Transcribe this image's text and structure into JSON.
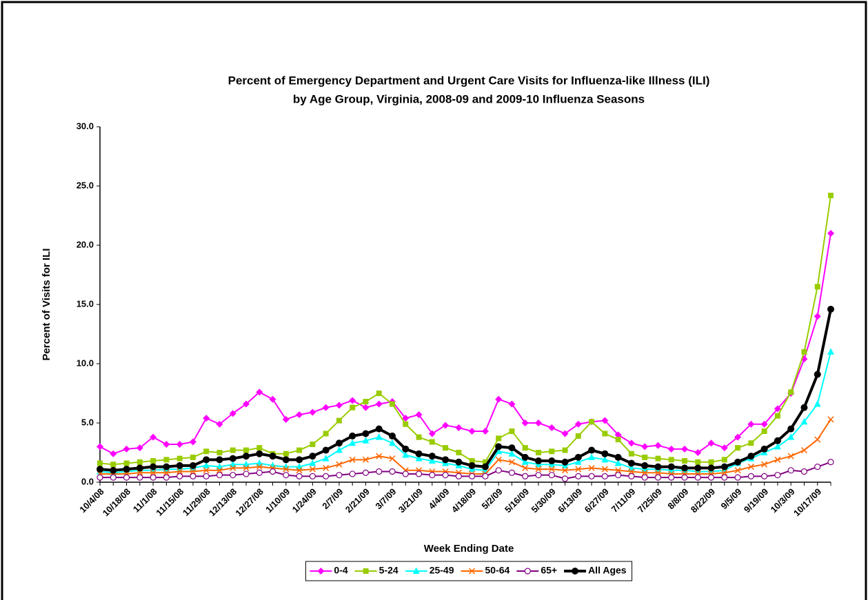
{
  "chart_data": {
    "type": "line",
    "title": [
      "Percent of Emergency Department and Urgent Care Visits for Influenza-like Illness (ILI)",
      "by Age Group, Virginia, 2008-09 and 2009-10 Influenza Seasons"
    ],
    "x_label": "Week Ending Date",
    "y_label": "Percent of Visits for ILI",
    "categories": [
      "10/4/08",
      null,
      "10/18/08",
      null,
      "11/1/08",
      null,
      "11/15/08",
      null,
      "11/29/08",
      null,
      "12/13/08",
      null,
      "12/27/08",
      null,
      "1/10/09",
      null,
      "1/24/09",
      null,
      "2/7/09",
      null,
      "2/21/09",
      null,
      "3/7/09",
      null,
      "3/21/09",
      null,
      "4/4/09",
      null,
      "4/18/09",
      null,
      "5/2/09",
      null,
      "5/16/09",
      null,
      "5/30/09",
      null,
      "6/13/09",
      null,
      "6/27/09",
      null,
      "7/11/09",
      null,
      "7/25/09",
      null,
      "8/8/09",
      null,
      "8/22/09",
      null,
      "9/5/09",
      null,
      "9/19/09",
      null,
      "10/3/09",
      null,
      "10/17/09",
      null
    ],
    "ylim": [
      0,
      30
    ],
    "yticks": [
      {
        "value": 0,
        "label": "0.0"
      },
      {
        "value": 5,
        "label": "5.0"
      },
      {
        "value": 10,
        "label": "10.0"
      },
      {
        "value": 15,
        "label": "15.0"
      },
      {
        "value": 20,
        "label": "20.0"
      },
      {
        "value": 25,
        "label": "25.0"
      },
      {
        "value": 30,
        "label": "30.0"
      }
    ],
    "grid": false,
    "legend": "bottom",
    "series": [
      {
        "name": "0-4",
        "color": "#ff00ff",
        "marker": "diamond",
        "values": [
          3.0,
          2.4,
          2.8,
          2.9,
          3.8,
          3.2,
          3.2,
          3.4,
          5.4,
          4.9,
          5.8,
          6.6,
          7.6,
          7.0,
          5.3,
          5.7,
          5.9,
          6.3,
          6.5,
          6.9,
          6.3,
          6.6,
          6.8,
          5.4,
          5.7,
          4.1,
          4.8,
          4.6,
          4.3,
          4.3,
          7.0,
          6.6,
          5.0,
          5.0,
          4.6,
          4.1,
          4.9,
          5.1,
          5.2,
          4.0,
          3.3,
          3.0,
          3.1,
          2.8,
          2.8,
          2.5,
          3.3,
          2.9,
          3.8,
          4.9,
          4.9,
          6.2,
          7.5,
          10.4,
          14.0,
          21.0
        ]
      },
      {
        "name": "5-24",
        "color": "#99cc00",
        "marker": "square",
        "values": [
          1.6,
          1.5,
          1.6,
          1.7,
          1.8,
          1.9,
          2.0,
          2.1,
          2.6,
          2.5,
          2.7,
          2.7,
          2.9,
          2.4,
          2.4,
          2.7,
          3.2,
          4.1,
          5.2,
          6.3,
          6.8,
          7.5,
          6.6,
          4.9,
          3.8,
          3.4,
          2.9,
          2.5,
          1.8,
          1.7,
          3.7,
          4.3,
          2.9,
          2.5,
          2.6,
          2.7,
          3.9,
          5.1,
          4.1,
          3.6,
          2.4,
          2.1,
          2.0,
          1.9,
          1.8,
          1.7,
          1.7,
          1.9,
          2.9,
          3.3,
          4.3,
          5.6,
          7.6,
          11.0,
          16.5,
          24.2
        ]
      },
      {
        "name": "25-49",
        "color": "#00ffff",
        "marker": "triangle",
        "values": [
          0.9,
          0.8,
          0.9,
          1.0,
          1.0,
          1.1,
          1.1,
          1.2,
          1.4,
          1.3,
          1.5,
          1.5,
          1.6,
          1.4,
          1.3,
          1.3,
          1.6,
          2.0,
          2.7,
          3.3,
          3.5,
          3.8,
          3.3,
          2.3,
          2.0,
          1.8,
          1.6,
          1.4,
          1.1,
          1.0,
          2.6,
          2.4,
          1.7,
          1.5,
          1.5,
          1.4,
          1.7,
          2.1,
          1.9,
          1.6,
          1.2,
          1.1,
          1.1,
          1.0,
          1.0,
          0.9,
          0.9,
          1.0,
          1.6,
          2.0,
          2.5,
          3.0,
          3.8,
          5.1,
          6.6,
          11.0
        ]
      },
      {
        "name": "50-64",
        "color": "#ff6600",
        "marker": "x",
        "values": [
          0.7,
          0.7,
          0.7,
          0.8,
          0.8,
          0.8,
          0.9,
          0.9,
          1.0,
          1.0,
          1.2,
          1.2,
          1.3,
          1.2,
          1.1,
          1.0,
          1.1,
          1.2,
          1.5,
          1.9,
          1.9,
          2.2,
          2.0,
          1.0,
          1.0,
          0.9,
          0.9,
          0.8,
          0.7,
          0.7,
          1.9,
          1.7,
          1.2,
          1.1,
          1.1,
          1.0,
          1.1,
          1.2,
          1.1,
          1.0,
          0.9,
          0.8,
          0.8,
          0.7,
          0.7,
          0.7,
          0.7,
          0.8,
          1.0,
          1.3,
          1.5,
          1.9,
          2.2,
          2.7,
          3.6,
          5.3
        ]
      },
      {
        "name": "65+",
        "color": "#800080",
        "marker": "circle-open",
        "values": [
          0.4,
          0.4,
          0.4,
          0.4,
          0.4,
          0.4,
          0.5,
          0.5,
          0.5,
          0.6,
          0.6,
          0.7,
          0.8,
          0.9,
          0.6,
          0.5,
          0.5,
          0.5,
          0.6,
          0.7,
          0.8,
          0.9,
          0.9,
          0.7,
          0.7,
          0.6,
          0.6,
          0.5,
          0.5,
          0.5,
          1.0,
          0.8,
          0.5,
          0.6,
          0.6,
          0.3,
          0.5,
          0.5,
          0.5,
          0.6,
          0.5,
          0.4,
          0.4,
          0.4,
          0.4,
          0.4,
          0.4,
          0.4,
          0.4,
          0.5,
          0.5,
          0.6,
          1.0,
          0.9,
          1.3,
          1.7
        ]
      },
      {
        "name": "All Ages",
        "color": "#000000",
        "marker": "circle",
        "values": [
          1.1,
          1.0,
          1.1,
          1.2,
          1.3,
          1.3,
          1.4,
          1.4,
          1.9,
          1.9,
          2.0,
          2.2,
          2.4,
          2.2,
          1.9,
          1.9,
          2.2,
          2.7,
          3.3,
          3.9,
          4.1,
          4.5,
          3.9,
          2.8,
          2.4,
          2.2,
          1.9,
          1.7,
          1.4,
          1.3,
          3.0,
          2.9,
          2.1,
          1.8,
          1.8,
          1.7,
          2.1,
          2.7,
          2.4,
          2.1,
          1.6,
          1.4,
          1.3,
          1.3,
          1.2,
          1.2,
          1.2,
          1.3,
          1.7,
          2.2,
          2.8,
          3.5,
          4.5,
          6.3,
          9.1,
          14.6
        ]
      }
    ]
  }
}
